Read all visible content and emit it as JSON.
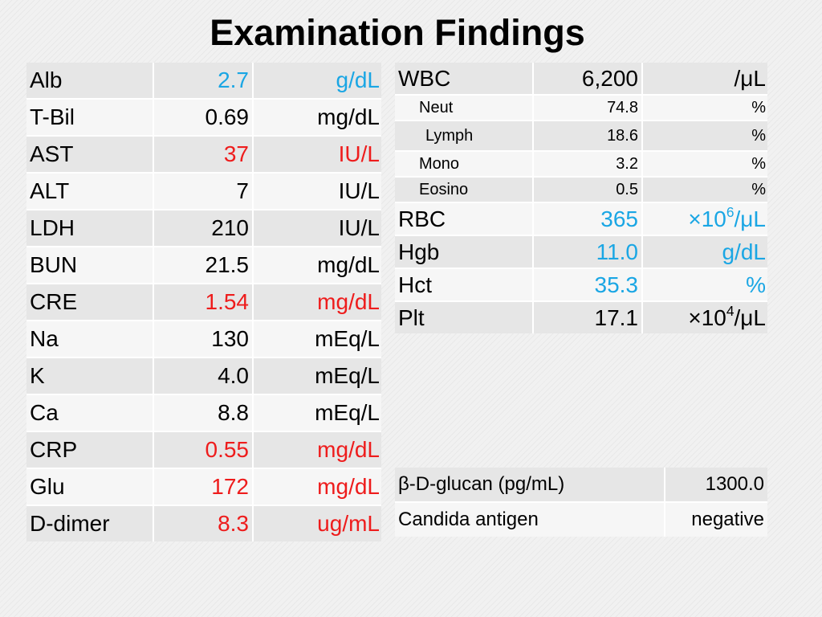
{
  "title": "Examination Findings",
  "colors": {
    "normal": "#000000",
    "low": "#1aa6e4",
    "high": "#ee1c1c"
  },
  "chemistry": [
    {
      "label": "Alb",
      "value": "2.7",
      "unit": "g/dL",
      "flag": "low"
    },
    {
      "label": "T-Bil",
      "value": "0.69",
      "unit": "mg/dL",
      "flag": "normal"
    },
    {
      "label": "AST",
      "value": "37",
      "unit": "IU/L",
      "flag": "high"
    },
    {
      "label": "ALT",
      "value": "7",
      "unit": "IU/L",
      "flag": "normal"
    },
    {
      "label": "LDH",
      "value": "210",
      "unit": "IU/L",
      "flag": "normal"
    },
    {
      "label": "BUN",
      "value": "21.5",
      "unit": "mg/dL",
      "flag": "normal"
    },
    {
      "label": "CRE",
      "value": "1.54",
      "unit": "mg/dL",
      "flag": "high"
    },
    {
      "label": "Na",
      "value": "130",
      "unit": "mEq/L",
      "flag": "normal"
    },
    {
      "label": "K",
      "value": "4.0",
      "unit": "mEq/L",
      "flag": "normal"
    },
    {
      "label": "Ca",
      "value": "8.8",
      "unit": "mEq/L",
      "flag": "normal"
    },
    {
      "label": "CRP",
      "value": "0.55",
      "unit": "mg/dL",
      "flag": "high"
    },
    {
      "label": "Glu",
      "value": "172",
      "unit": "mg/dL",
      "flag": "high"
    },
    {
      "label": "D-dimer",
      "value": "8.3",
      "unit": "ug/mL",
      "flag": "high"
    }
  ],
  "hematology": {
    "wbc": {
      "label": "WBC",
      "value": "6,200",
      "unit": "/μL",
      "flag": "normal"
    },
    "differential": [
      {
        "label": "Neut",
        "value": "74.8",
        "unit": "%"
      },
      {
        "label": "Lymph",
        "value": "18.6",
        "unit": "%"
      },
      {
        "label": "Mono",
        "value": "3.2",
        "unit": "%"
      },
      {
        "label": "Eosino",
        "value": "0.5",
        "unit": "%"
      }
    ],
    "rbc": {
      "label": "RBC",
      "value": "365",
      "unit_base": "×10",
      "unit_exp": "6",
      "unit_tail": "/μL",
      "flag": "low"
    },
    "hgb": {
      "label": "Hgb",
      "value": "11.0",
      "unit": "g/dL",
      "flag": "low"
    },
    "hct": {
      "label": "Hct",
      "value": "35.3",
      "unit": "%",
      "flag": "low"
    },
    "plt": {
      "label": "Plt",
      "value": "17.1",
      "unit_base": "×10",
      "unit_exp": "4",
      "unit_tail": "/μL",
      "flag": "normal"
    }
  },
  "fungal": [
    {
      "label": "β-D-glucan (pg/mL)",
      "value": "1300.0"
    },
    {
      "label": "Candida antigen",
      "value": "negative"
    }
  ]
}
